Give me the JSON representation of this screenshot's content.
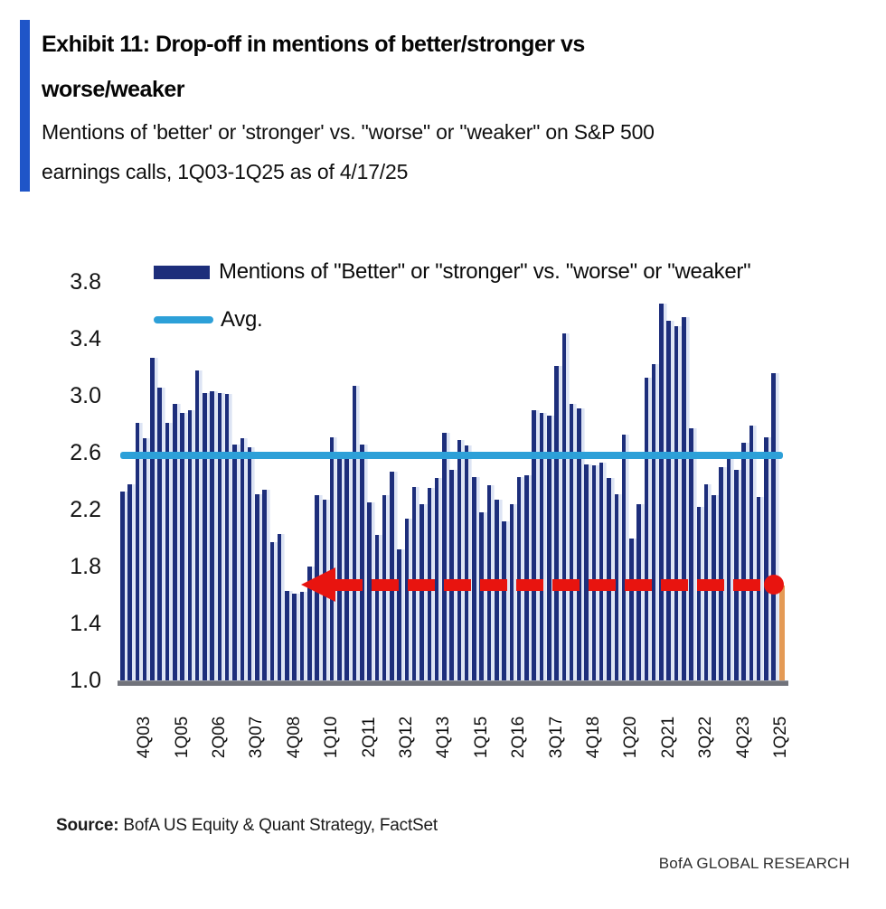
{
  "header": {
    "title_lines": [
      "Exhibit 11: Drop-off in mentions of better/stronger vs",
      "worse/weaker"
    ],
    "subtitle_lines": [
      "Mentions of 'better' or 'stronger' vs. \"worse\" or \"weaker\" on S&P 500",
      "earnings calls, 1Q03-1Q25 as of 4/17/25"
    ]
  },
  "legend": [
    {
      "label": "Mentions of \"Better\" or \"stronger\" vs. \"worse\" or \"weaker\"",
      "swatch": "bar"
    },
    {
      "label": "Avg.",
      "swatch": "line"
    }
  ],
  "colors": {
    "accent_bar": "#1f55c8",
    "bar": "#1d2e7b",
    "bar_gap_tint": "#dde4f4",
    "avg_line": "#2da0d8",
    "arrow_red": "#e8140f",
    "last_bar_orange": "#e49a55",
    "baseline_gray": "#71737b"
  },
  "chart_data": {
    "type": "bar",
    "title": "Mentions of \"Better\" or \"stronger\" vs. \"worse\" or \"weaker\"",
    "xlabel": "",
    "ylabel": "",
    "ylim": [
      1.0,
      3.8
    ],
    "yticks": [
      3.8,
      3.4,
      3.0,
      2.6,
      2.2,
      1.8,
      1.4,
      1.0
    ],
    "grid": false,
    "legend_position": "top-left",
    "categories": [
      "1Q03",
      "2Q03",
      "3Q03",
      "4Q03",
      "1Q04",
      "2Q04",
      "3Q04",
      "4Q04",
      "1Q05",
      "2Q05",
      "3Q05",
      "4Q05",
      "1Q06",
      "2Q06",
      "3Q06",
      "4Q06",
      "1Q07",
      "2Q07",
      "3Q07",
      "4Q07",
      "1Q08",
      "2Q08",
      "3Q08",
      "4Q08",
      "1Q09",
      "2Q09",
      "3Q09",
      "4Q09",
      "1Q10",
      "2Q10",
      "3Q10",
      "4Q10",
      "1Q11",
      "2Q11",
      "3Q11",
      "4Q11",
      "1Q12",
      "2Q12",
      "3Q12",
      "4Q12",
      "1Q13",
      "2Q13",
      "3Q13",
      "4Q13",
      "1Q14",
      "2Q14",
      "3Q14",
      "4Q14",
      "1Q15",
      "2Q15",
      "3Q15",
      "4Q15",
      "1Q16",
      "2Q16",
      "3Q16",
      "4Q16",
      "1Q17",
      "2Q17",
      "3Q17",
      "4Q17",
      "1Q18",
      "2Q18",
      "3Q18",
      "4Q18",
      "1Q19",
      "2Q19",
      "3Q19",
      "4Q19",
      "1Q20",
      "2Q20",
      "3Q20",
      "4Q20",
      "1Q21",
      "2Q21",
      "3Q21",
      "4Q21",
      "1Q22",
      "2Q22",
      "3Q22",
      "4Q22",
      "1Q23",
      "2Q23",
      "3Q23",
      "4Q23",
      "1Q24",
      "2Q24",
      "3Q24",
      "4Q24",
      "1Q25"
    ],
    "values": [
      2.33,
      2.38,
      2.81,
      2.7,
      3.27,
      3.06,
      2.81,
      2.94,
      2.88,
      2.9,
      3.18,
      3.02,
      3.03,
      3.02,
      3.01,
      2.66,
      2.7,
      2.64,
      2.31,
      2.34,
      1.97,
      2.03,
      1.63,
      1.61,
      1.62,
      1.8,
      2.3,
      2.27,
      2.71,
      2.57,
      2.6,
      3.07,
      2.66,
      2.25,
      2.02,
      2.3,
      2.47,
      1.92,
      2.14,
      2.36,
      2.24,
      2.35,
      2.42,
      2.74,
      2.48,
      2.69,
      2.65,
      2.43,
      2.18,
      2.37,
      2.27,
      2.12,
      2.24,
      2.43,
      2.44,
      2.9,
      2.88,
      2.86,
      3.21,
      3.44,
      2.94,
      2.91,
      2.52,
      2.51,
      2.53,
      2.42,
      2.31,
      2.73,
      2.0,
      2.24,
      3.13,
      3.22,
      3.65,
      3.53,
      3.49,
      3.55,
      2.77,
      2.22,
      2.38,
      2.3,
      2.5,
      2.57,
      2.48,
      2.67,
      2.79,
      2.29,
      2.71,
      3.16,
      1.67
    ],
    "xtick_labels": [
      "4Q03",
      "1Q05",
      "2Q06",
      "3Q07",
      "4Q08",
      "1Q10",
      "2Q11",
      "3Q12",
      "4Q13",
      "1Q15",
      "2Q16",
      "3Q17",
      "4Q18",
      "1Q20",
      "2Q21",
      "3Q22",
      "4Q23",
      "1Q25"
    ],
    "avg_value": 2.58,
    "highlight_last_bar": true,
    "annotation": {
      "shape": "left-dashed-arrow-with-dot",
      "y_value": 1.67,
      "from_category": "1Q25",
      "to_category": "1Q09"
    }
  },
  "source": {
    "label": "Source:",
    "text": " BofA US Equity & Quant Strategy, FactSet"
  },
  "footer": "BofA GLOBAL RESEARCH"
}
